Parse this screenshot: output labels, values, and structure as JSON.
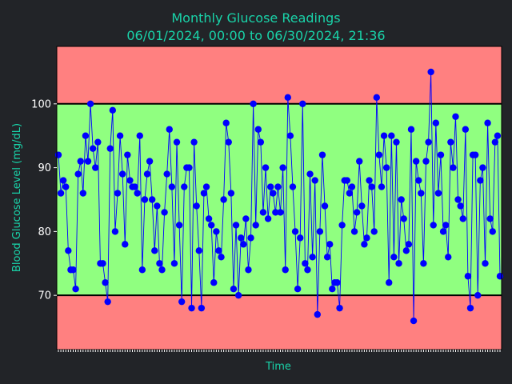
{
  "chart_data": {
    "type": "line",
    "title": "Monthly Glucose Readings",
    "subtitle": "06/01/2024, 00:00 to 06/30/2024, 21:36",
    "xlabel": "Time",
    "ylabel": "Blood Glucose Level (mg/dL)",
    "ylim": [
      61.5,
      109
    ],
    "yticks": [
      70,
      80,
      90,
      100
    ],
    "target_range": {
      "low": 70,
      "high": 100
    },
    "x_start": "2024-06-01 00:00",
    "x_end": "2024-06-30 21:36",
    "grid": false,
    "legend": "none",
    "colors": {
      "background": "#222428",
      "plot_out_of_range": "#ff8080",
      "plot_in_range": "#90ff80",
      "line": "#0000ff",
      "threshold_lines": "#000000",
      "text_accent": "#19d3a9"
    },
    "values": [
      92,
      86,
      88,
      87,
      77,
      74,
      74,
      71,
      89,
      91,
      86,
      95,
      91,
      100,
      93,
      90,
      94,
      75,
      75,
      72,
      69,
      93,
      99,
      80,
      86,
      95,
      89,
      78,
      92,
      88,
      87,
      87,
      86,
      95,
      74,
      85,
      89,
      91,
      85,
      77,
      84,
      75,
      74,
      83,
      89,
      96,
      87,
      75,
      94,
      81,
      69,
      87,
      90,
      90,
      68,
      94,
      84,
      77,
      68,
      86,
      87,
      82,
      81,
      72,
      80,
      77,
      76,
      85,
      97,
      94,
      86,
      71,
      81,
      70,
      79,
      78,
      82,
      74,
      79,
      100,
      81,
      96,
      94,
      83,
      90,
      82,
      87,
      86,
      83,
      87,
      83,
      90,
      74,
      101,
      95,
      87,
      80,
      71,
      79,
      100,
      75,
      74,
      89,
      76,
      88,
      67,
      80,
      92,
      84,
      76,
      78,
      71,
      72,
      72,
      68,
      81,
      88,
      88,
      86,
      87,
      80,
      83,
      91,
      84,
      78,
      79,
      88,
      87,
      80,
      101,
      92,
      87,
      95,
      90,
      72,
      95,
      76,
      94,
      75,
      85,
      82,
      77,
      78,
      96,
      66,
      91,
      88,
      86,
      75,
      91,
      94,
      105,
      81,
      97,
      86,
      92,
      80,
      81,
      76,
      94,
      90,
      98,
      85,
      84,
      82,
      96,
      73,
      68,
      92,
      92,
      70,
      88,
      90,
      75,
      97,
      82,
      80,
      94,
      95,
      73
    ]
  }
}
